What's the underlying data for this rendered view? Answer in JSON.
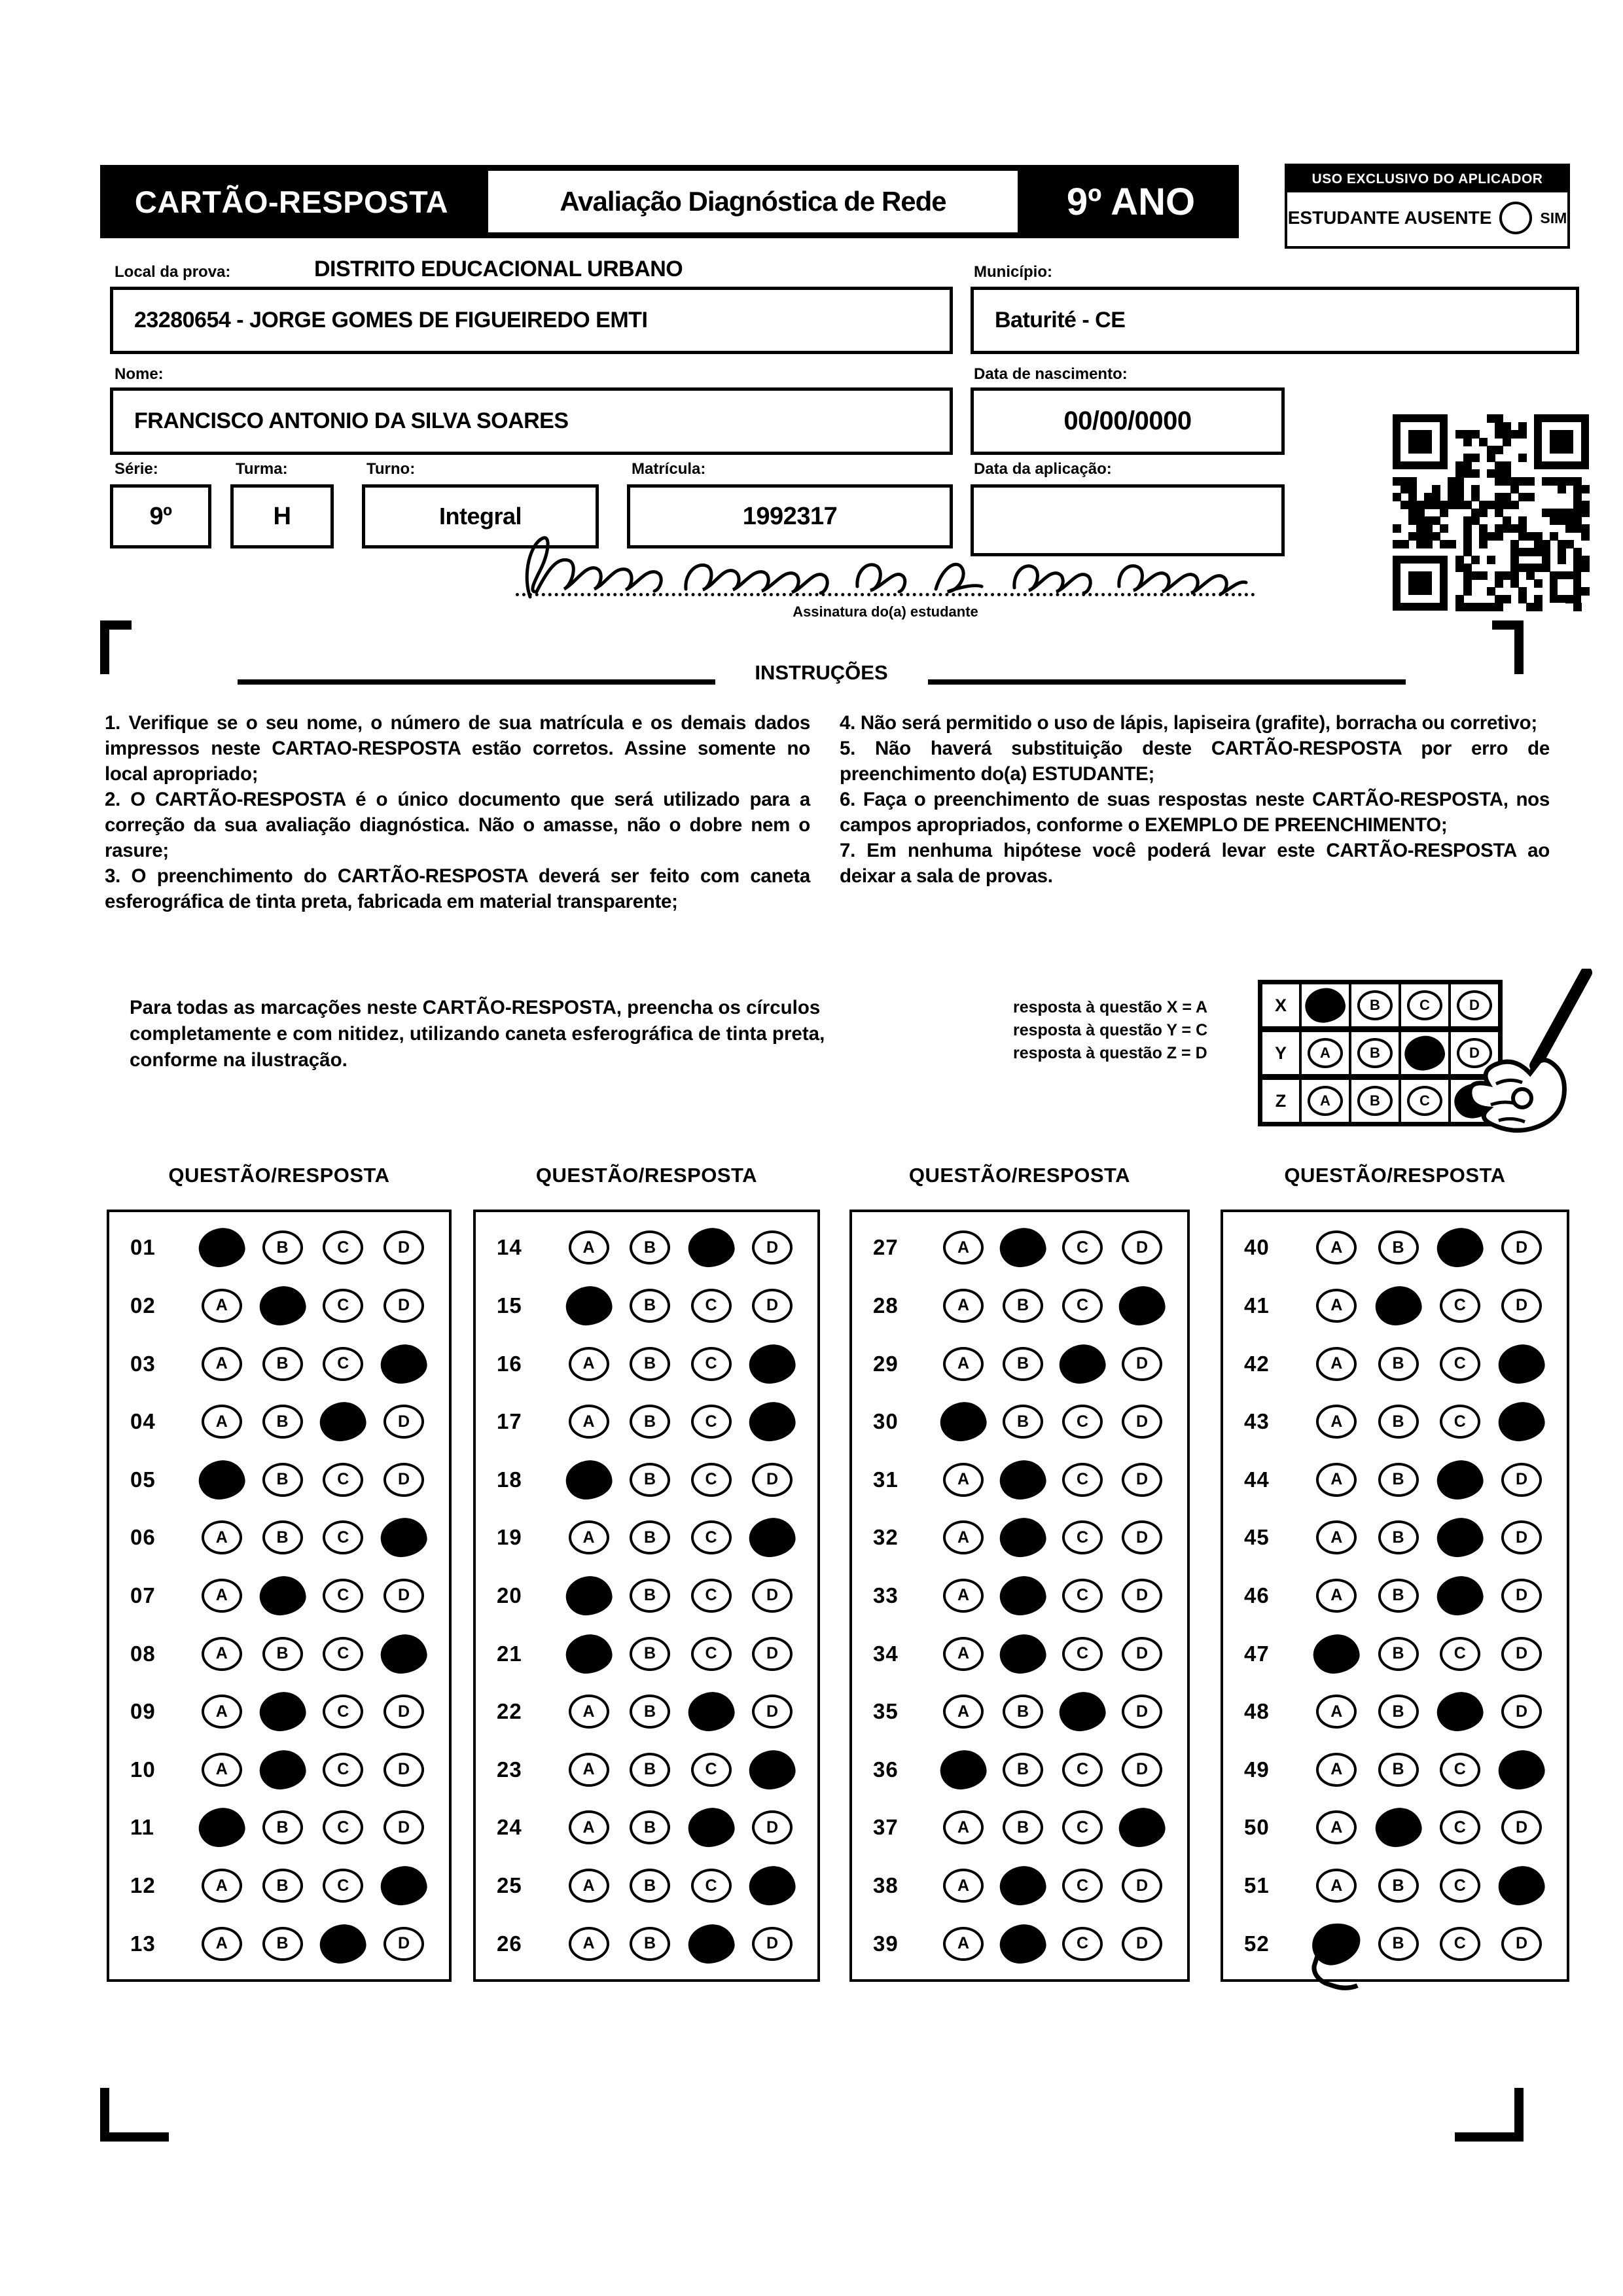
{
  "colors": {
    "ink": "#000000",
    "paper": "#ffffff"
  },
  "header": {
    "card_title": "CARTÃO-RESPOSTA",
    "exam_title": "Avaliação Diagnóstica de Rede",
    "grade": "9º ANO",
    "uso_title": "USO EXCLUSIVO DO APLICADOR",
    "ausente_label": "ESTUDANTE AUSENTE",
    "ausente_option": "SIM"
  },
  "fields": {
    "local_label": "Local da prova:",
    "local_value": "DISTRITO EDUCACIONAL URBANO",
    "school_value": "23280654 - JORGE GOMES DE FIGUEIREDO EMTI",
    "municipio_label": "Município:",
    "municipio_value": "Baturité - CE",
    "nome_label": "Nome:",
    "nome_value": "FRANCISCO ANTONIO DA SILVA SOARES",
    "nascimento_label": "Data de nascimento:",
    "nascimento_value": "00/00/0000",
    "serie_label": "Série:",
    "serie_value": "9º",
    "turma_label": "Turma:",
    "turma_value": "H",
    "turno_label": "Turno:",
    "turno_value": "Integral",
    "matricula_label": "Matrícula:",
    "matricula_value": "1992317",
    "aplicacao_label": "Data da aplicação:",
    "aplicacao_value": "",
    "assinatura_caption": "Assinatura do(a) estudante"
  },
  "instructions": {
    "title": "INSTRUÇÕES",
    "left": [
      "1. Verifique se o seu nome, o número de sua matrícula e os demais dados impressos neste CARTAO-RESPOSTA estão corretos. Assine somente no local apropriado;",
      "2. O CARTÃO-RESPOSTA é o único documento que será utilizado para a correção da sua avaliação diagnóstica. Não o amasse, não o dobre nem o rasure;",
      "3. O preenchimento do CARTÃO-RESPOSTA deverá ser feito com caneta esferográfica de tinta preta, fabricada em material transparente;"
    ],
    "right": [
      "4. Não será permitido o uso de lápis, lapiseira (grafite), borracha ou corretivo;",
      "5. Não haverá substituição deste CARTÃO-RESPOSTA por erro de preenchimento do(a) ESTUDANTE;",
      "6. Faça o preenchimento de suas respostas neste CARTÃO-RESPOSTA, nos campos apropriados, conforme o EXEMPLO DE PREENCHIMENTO;",
      "7. Em nenhuma hipótese você poderá levar este CARTÃO-RESPOSTA ao deixar a sala de provas."
    ]
  },
  "example": {
    "paragraph": "Para todas as marcações neste CARTÃO-RESPOSTA, preencha os círculos completamente e com nitidez, utilizando caneta esferográfica de tinta preta, conforme na ilustração.",
    "legend": [
      "resposta à questão X = A",
      "resposta à questão Y = C",
      "resposta à questão Z = D"
    ],
    "options": [
      "A",
      "B",
      "C",
      "D"
    ],
    "rows": [
      {
        "label": "X",
        "answer": "A"
      },
      {
        "label": "Y",
        "answer": "C"
      },
      {
        "label": "Z",
        "answer": "D"
      }
    ]
  },
  "answers": {
    "column_header": "QUESTÃO/RESPOSTA",
    "options": [
      "A",
      "B",
      "C",
      "D"
    ],
    "columns": [
      {
        "questions": [
          {
            "n": "01",
            "marked": "A"
          },
          {
            "n": "02",
            "marked": "B"
          },
          {
            "n": "03",
            "marked": "D"
          },
          {
            "n": "04",
            "marked": "C"
          },
          {
            "n": "05",
            "marked": "A"
          },
          {
            "n": "06",
            "marked": "D"
          },
          {
            "n": "07",
            "marked": "B"
          },
          {
            "n": "08",
            "marked": "D"
          },
          {
            "n": "09",
            "marked": "B"
          },
          {
            "n": "10",
            "marked": "B"
          },
          {
            "n": "11",
            "marked": "A"
          },
          {
            "n": "12",
            "marked": "D"
          },
          {
            "n": "13",
            "marked": "C"
          }
        ]
      },
      {
        "questions": [
          {
            "n": "14",
            "marked": "C"
          },
          {
            "n": "15",
            "marked": "A"
          },
          {
            "n": "16",
            "marked": "D"
          },
          {
            "n": "17",
            "marked": "D"
          },
          {
            "n": "18",
            "marked": "A"
          },
          {
            "n": "19",
            "marked": "D"
          },
          {
            "n": "20",
            "marked": "A"
          },
          {
            "n": "21",
            "marked": "A"
          },
          {
            "n": "22",
            "marked": "C"
          },
          {
            "n": "23",
            "marked": "D"
          },
          {
            "n": "24",
            "marked": "C"
          },
          {
            "n": "25",
            "marked": "D"
          },
          {
            "n": "26",
            "marked": "C"
          }
        ]
      },
      {
        "questions": [
          {
            "n": "27",
            "marked": "B"
          },
          {
            "n": "28",
            "marked": "D"
          },
          {
            "n": "29",
            "marked": "C"
          },
          {
            "n": "30",
            "marked": "A"
          },
          {
            "n": "31",
            "marked": "B"
          },
          {
            "n": "32",
            "marked": "B"
          },
          {
            "n": "33",
            "marked": "B"
          },
          {
            "n": "34",
            "marked": "B"
          },
          {
            "n": "35",
            "marked": "C"
          },
          {
            "n": "36",
            "marked": "A"
          },
          {
            "n": "37",
            "marked": "D"
          },
          {
            "n": "38",
            "marked": "B"
          },
          {
            "n": "39",
            "marked": "B"
          }
        ]
      },
      {
        "questions": [
          {
            "n": "40",
            "marked": "C"
          },
          {
            "n": "41",
            "marked": "B"
          },
          {
            "n": "42",
            "marked": "D"
          },
          {
            "n": "43",
            "marked": "D"
          },
          {
            "n": "44",
            "marked": "C"
          },
          {
            "n": "45",
            "marked": "C"
          },
          {
            "n": "46",
            "marked": "C"
          },
          {
            "n": "47",
            "marked": "A"
          },
          {
            "n": "48",
            "marked": "C"
          },
          {
            "n": "49",
            "marked": "D"
          },
          {
            "n": "50",
            "marked": "B"
          },
          {
            "n": "51",
            "marked": "D"
          },
          {
            "n": "52",
            "marked": "A",
            "scribble": true
          }
        ]
      }
    ]
  }
}
